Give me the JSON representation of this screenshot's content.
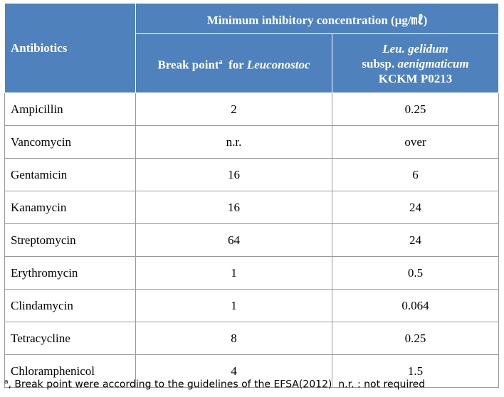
{
  "table": {
    "header": {
      "group": "Minimum inhibitory concentration (μg/㎖)",
      "first": "Antibiotics",
      "col2": {
        "text": "Break point",
        "sup": "a",
        "mid": "for",
        "italic": "Leuconostoc"
      },
      "col3": {
        "line1": "Leu. gelidum",
        "line2_plain": "subsp.",
        "line2_italic": "aenigmaticum",
        "line3": "KCKM P0213"
      }
    },
    "rows": [
      [
        "Ampicillin",
        "2",
        "0.25"
      ],
      [
        "Vancomycin",
        "n.r.",
        "over"
      ],
      [
        "Gentamicin",
        "16",
        "6"
      ],
      [
        "Kanamycin",
        "16",
        "24"
      ],
      [
        "Streptomycin",
        "64",
        "24"
      ],
      [
        "Erythromycin",
        "1",
        "0.5"
      ],
      [
        "Clindamycin",
        "1",
        "0.064"
      ],
      [
        "Tetracycline",
        "8",
        "0.25"
      ],
      [
        "Chloramphenicol",
        "4",
        "1.5"
      ]
    ]
  },
  "footnote": {
    "sup": "a",
    "text": ", Break point were according to the guidelines of the EFSA(2012)  n.r. : not required"
  }
}
